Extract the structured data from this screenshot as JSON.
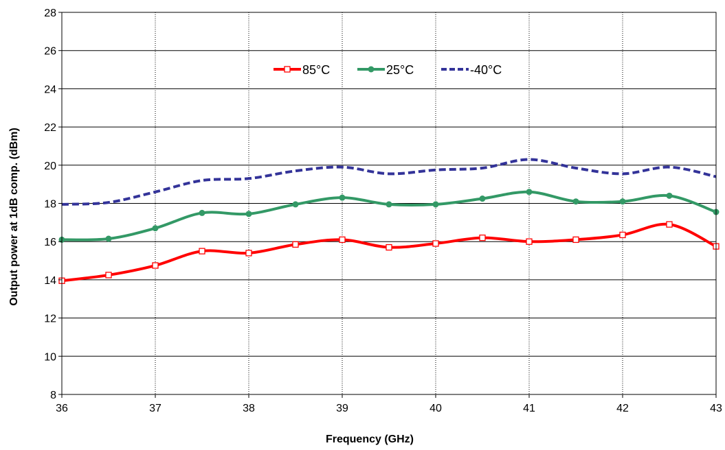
{
  "chart_data": {
    "type": "line",
    "xlabel": "Frequency (GHz)",
    "ylabel": "Output power at 1dB comp. (dBm)",
    "xlim": [
      36,
      43
    ],
    "ylim": [
      8,
      28
    ],
    "xticks": [
      36,
      37,
      38,
      39,
      40,
      41,
      42,
      43
    ],
    "yticks": [
      8,
      10,
      12,
      14,
      16,
      18,
      20,
      22,
      24,
      26,
      28
    ],
    "grid": {
      "horizontal": "solid",
      "vertical": "dotted"
    },
    "legend_position": "top-center",
    "x": [
      36,
      36.5,
      37,
      37.5,
      38,
      38.5,
      39,
      39.5,
      40,
      40.5,
      41,
      41.5,
      42,
      42.5,
      43
    ],
    "series": [
      {
        "name": "85°C",
        "color": "#ff0000",
        "marker": "open-square",
        "line_style": "solid",
        "values": [
          13.95,
          14.25,
          14.75,
          15.5,
          15.4,
          15.85,
          16.1,
          15.7,
          15.9,
          16.2,
          16.0,
          16.1,
          16.35,
          16.9,
          15.75
        ]
      },
      {
        "name": "25°C",
        "color": "#339966",
        "marker": "filled-circle",
        "line_style": "solid",
        "values": [
          16.1,
          16.15,
          16.7,
          17.5,
          17.45,
          17.95,
          18.3,
          17.95,
          17.95,
          18.25,
          18.6,
          18.1,
          18.1,
          18.4,
          17.55
        ]
      },
      {
        "name": "-40°C",
        "color": "#333399",
        "marker": "none",
        "line_style": "dashed",
        "values": [
          17.95,
          18.05,
          18.6,
          19.2,
          19.3,
          19.7,
          19.9,
          19.55,
          19.75,
          19.85,
          20.3,
          19.85,
          19.55,
          19.9,
          19.4
        ]
      }
    ]
  }
}
